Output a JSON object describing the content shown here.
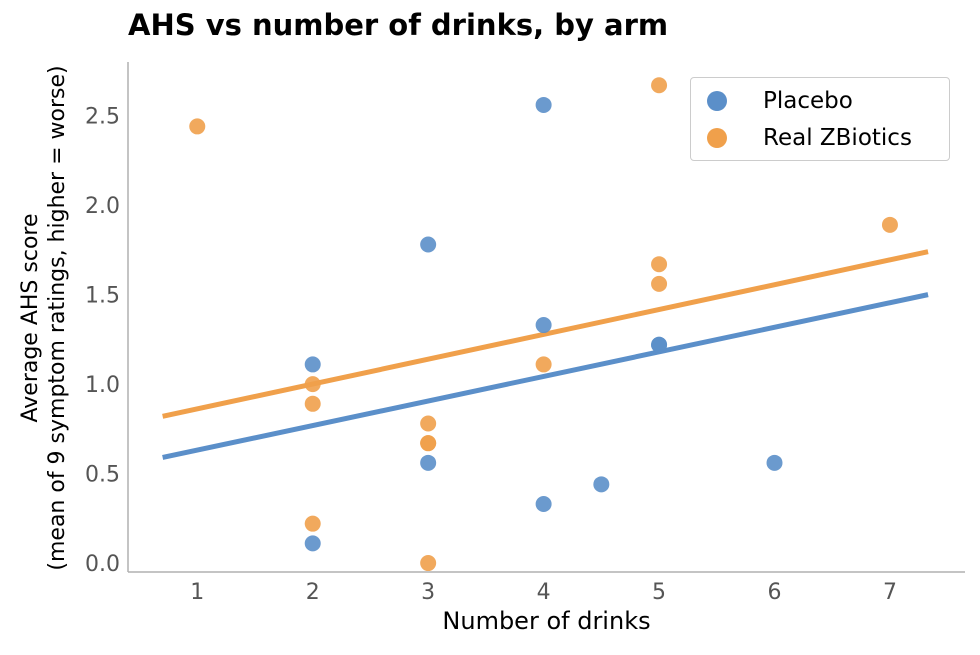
{
  "chart_data": {
    "type": "scatter",
    "title": "AHS vs number of drinks, by arm",
    "xlabel": "Number of drinks",
    "ylabel": [
      "Average AHS score",
      "(mean of 9 symptom ratings, higher = worse)"
    ],
    "xlim": [
      0.4,
      7.65
    ],
    "ylim": [
      -0.05,
      2.8
    ],
    "xticks": [
      1,
      2,
      3,
      4,
      5,
      6,
      7
    ],
    "xtick_labels": [
      "1",
      "2",
      "3",
      "4",
      "5",
      "6",
      "7"
    ],
    "yticks": [
      0.0,
      0.5,
      1.0,
      1.5,
      2.0,
      2.5
    ],
    "ytick_labels": [
      "0.0",
      "0.5",
      "1.0",
      "1.5",
      "2.0",
      "2.5"
    ],
    "grid": false,
    "legend_position": "top-right",
    "series": [
      {
        "name": "Placebo",
        "color": "#5b8fc9",
        "points": [
          {
            "x": 2,
            "y": 1.11
          },
          {
            "x": 2,
            "y": 0.11
          },
          {
            "x": 3,
            "y": 1.78
          },
          {
            "x": 3,
            "y": 0.56
          },
          {
            "x": 4,
            "y": 2.56
          },
          {
            "x": 4,
            "y": 1.33
          },
          {
            "x": 4,
            "y": 0.33
          },
          {
            "x": 4.5,
            "y": 0.44
          },
          {
            "x": 5,
            "y": 1.22
          },
          {
            "x": 5,
            "y": 1.22
          },
          {
            "x": 6,
            "y": 0.56
          }
        ],
        "fit": {
          "x": [
            0.7,
            7.33
          ],
          "y": [
            0.59,
            1.5
          ]
        }
      },
      {
        "name": "Real ZBiotics",
        "color": "#f0a04b",
        "points": [
          {
            "x": 1,
            "y": 2.44
          },
          {
            "x": 2,
            "y": 1.0
          },
          {
            "x": 2,
            "y": 0.89
          },
          {
            "x": 2,
            "y": 0.22
          },
          {
            "x": 3,
            "y": 0.78
          },
          {
            "x": 3,
            "y": 0.67
          },
          {
            "x": 3,
            "y": 0.67
          },
          {
            "x": 3,
            "y": 0.0
          },
          {
            "x": 4,
            "y": 1.11
          },
          {
            "x": 5,
            "y": 2.67
          },
          {
            "x": 5,
            "y": 1.67
          },
          {
            "x": 5,
            "y": 1.56
          },
          {
            "x": 7,
            "y": 1.89
          }
        ],
        "fit": {
          "x": [
            0.7,
            7.33
          ],
          "y": [
            0.82,
            1.74
          ]
        }
      }
    ]
  }
}
